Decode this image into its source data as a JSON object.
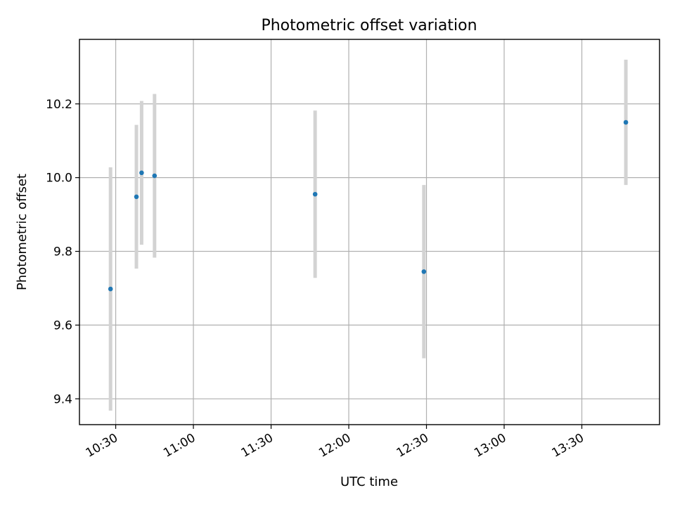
{
  "chart_data": {
    "type": "scatter",
    "title": "Photometric offset variation",
    "xlabel": "UTC time",
    "ylabel": "Photometric offset",
    "x_type": "time",
    "xlim": [
      "10:16",
      "14:00"
    ],
    "ylim": [
      9.33,
      10.375
    ],
    "x_ticks": [
      "10:30",
      "11:00",
      "11:30",
      "12:00",
      "12:30",
      "13:00",
      "13:30"
    ],
    "y_ticks": [
      9.4,
      9.6,
      9.8,
      10.0,
      10.2
    ],
    "y_tick_labels": [
      "9.4",
      "9.6",
      "9.8",
      "10.0",
      "10.2"
    ],
    "grid": true,
    "points": [
      {
        "x": "10:28",
        "y": 9.698,
        "err": 0.33
      },
      {
        "x": "10:38",
        "y": 9.948,
        "err": 0.195
      },
      {
        "x": "10:40",
        "y": 10.013,
        "err": 0.195
      },
      {
        "x": "10:45",
        "y": 10.005,
        "err": 0.222
      },
      {
        "x": "11:47",
        "y": 9.955,
        "err": 0.227
      },
      {
        "x": "12:29",
        "y": 9.745,
        "err": 0.235
      },
      {
        "x": "13:47",
        "y": 10.15,
        "err": 0.17
      }
    ],
    "marker_color": "#1f77b4",
    "errorbar_color": "#d3d3d3",
    "frame_color": "#000000",
    "grid_color": "#b0b0b0"
  }
}
